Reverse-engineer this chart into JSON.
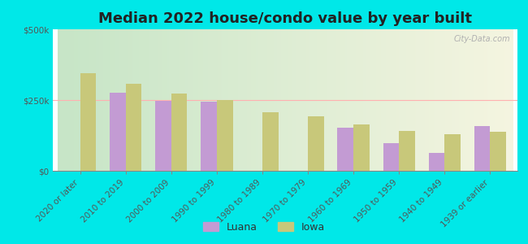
{
  "title": "Median 2022 house/condo value by year built",
  "categories": [
    "2020 or later",
    "2010 to 2019",
    "2000 to 2009",
    "1990 to 1999",
    "1980 to 1989",
    "1970 to 1979",
    "1960 to 1969",
    "1950 to 1959",
    "1940 to 1949",
    "1939 or earlier"
  ],
  "luana_values": [
    0,
    275000,
    248000,
    243000,
    0,
    0,
    152000,
    97000,
    63000,
    158000
  ],
  "iowa_values": [
    345000,
    308000,
    272000,
    250000,
    208000,
    192000,
    163000,
    142000,
    128000,
    138000
  ],
  "luana_color": "#c39bd3",
  "iowa_color": "#c8c87a",
  "bar_width": 0.35,
  "ylim": [
    0,
    500000
  ],
  "ytick_labels": [
    "$0",
    "$250k",
    "$500k"
  ],
  "ytick_values": [
    0,
    250000,
    500000
  ],
  "background_outer": "#00e8e8",
  "legend_luana": "Luana",
  "legend_iowa": "Iowa",
  "watermark": "City-Data.com",
  "title_fontsize": 13,
  "tick_fontsize": 7.5,
  "legend_fontsize": 9
}
